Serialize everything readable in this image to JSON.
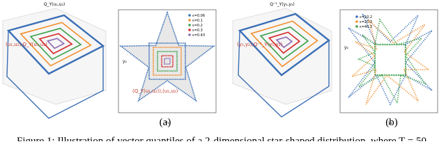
{
  "panels": [
    {
      "title": "Q_Y(u₁,u₂)",
      "annotation": "(u₁,u₂),Q_Y(u₁,u₂)"
    },
    {
      "legend": [
        "ε=0.06",
        "ε=0.1",
        "ε=0.2",
        "ε=0.3",
        "ε=0.43"
      ],
      "x_label": "y₁",
      "y_label": "y₂",
      "annotation": "(Q_Y(u₁,u₂)),(u₁,u₂)"
    },
    {
      "title": "Q⁻¹_Y(y₁,y₂)",
      "annotation": "(y₁,y₂),Q⁻¹_Y(y₁,y₂)"
    },
    {
      "legend": [
        "ε=10.2",
        "ε=25.3",
        "ε=40.3"
      ],
      "x_label": "y₁",
      "y_label": "y₂"
    }
  ],
  "sublabels": [
    "(a)",
    "(b)"
  ],
  "caption": "Figure 1: Illustration of vector quantiles of a 2-dimensional star-shaped distribution, where T = 50"
}
